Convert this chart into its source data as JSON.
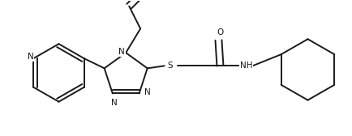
{
  "bg_color": "#ffffff",
  "line_color": "#1a1a1a",
  "line_width": 1.4,
  "figsize": [
    4.34,
    1.68
  ],
  "dpi": 100,
  "xlim": [
    0,
    4.34
  ],
  "ylim": [
    0,
    1.68
  ]
}
